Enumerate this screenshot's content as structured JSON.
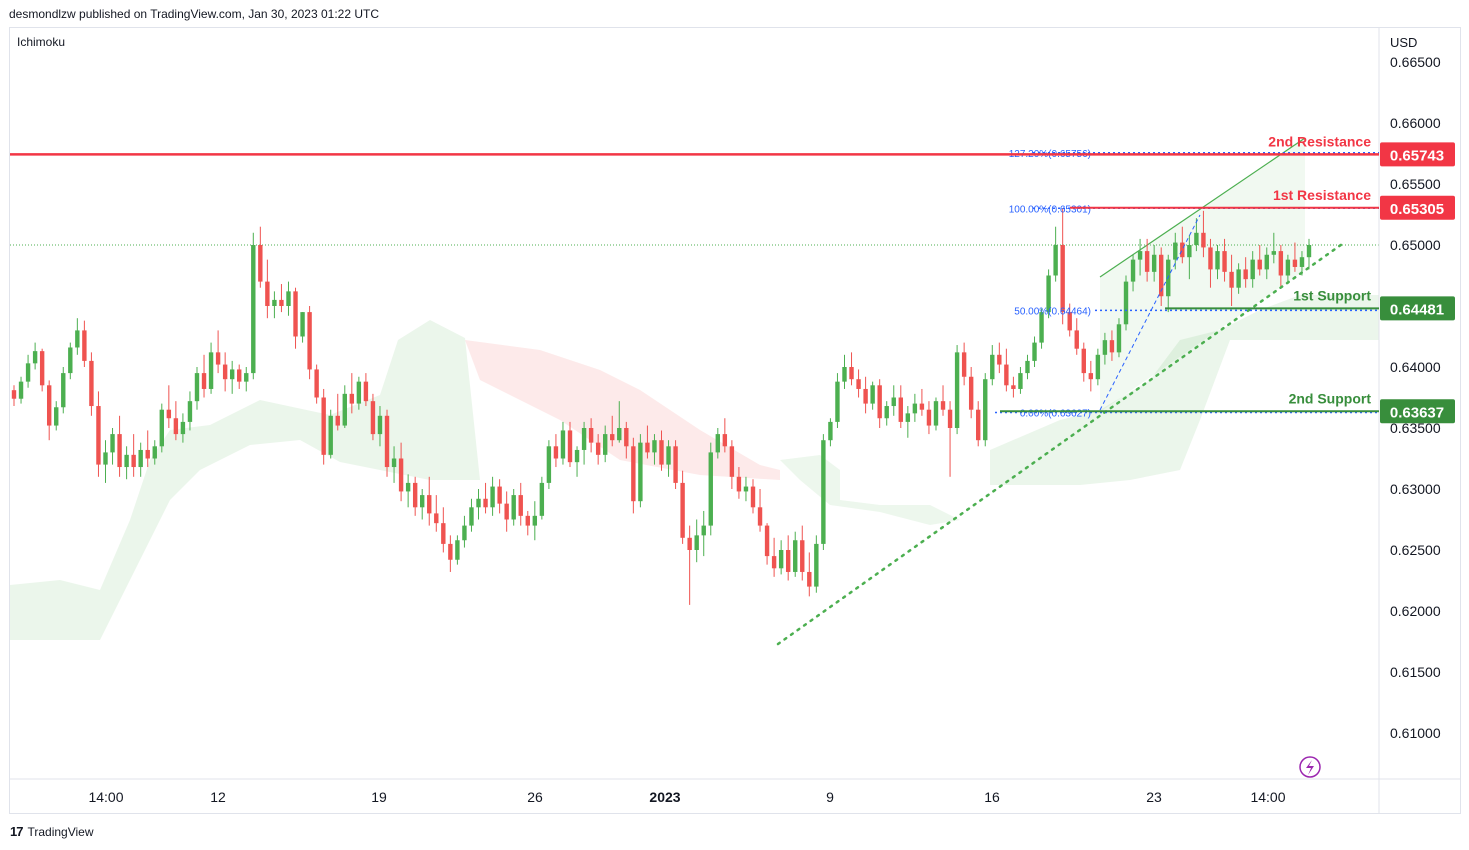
{
  "header": {
    "published_by": "desmondlzw published on TradingView.com, Jan 30, 2023 01:22 UTC"
  },
  "indicator": "Ichimoku",
  "currency": "USD",
  "footer": {
    "brand": "TradingView",
    "logo": "17"
  },
  "colors": {
    "up": "#26a69a",
    "up_candle": "#4caf50",
    "down_candle": "#ef5350",
    "resistance": "#f23645",
    "support": "#388e3c",
    "cloud_green": "#e6f4e6",
    "cloud_red": "#fde5e5",
    "fib": "#2962ff"
  },
  "chart_data": {
    "type": "candlestick",
    "title": "",
    "y_axis": {
      "ticks": [
        "0.66500",
        "0.66000",
        "0.65500",
        "0.65000",
        "0.64000",
        "0.63500",
        "0.63000",
        "0.62500",
        "0.62000",
        "0.61500",
        "0.61000"
      ],
      "range": [
        0.6055,
        0.6675
      ]
    },
    "x_axis": {
      "labels": [
        {
          "text": "14:00",
          "bold": false
        },
        {
          "text": "12",
          "bold": false
        },
        {
          "text": "19",
          "bold": false
        },
        {
          "text": "26",
          "bold": false
        },
        {
          "text": "2023",
          "bold": true
        },
        {
          "text": "9",
          "bold": false
        },
        {
          "text": "16",
          "bold": false
        },
        {
          "text": "23",
          "bold": false
        },
        {
          "text": "14:00",
          "bold": false
        }
      ]
    },
    "levels": [
      {
        "label": "2nd Resistance",
        "value": "0.65743",
        "kind": "resistance"
      },
      {
        "label": "1st Resistance",
        "value": "0.65305",
        "kind": "resistance"
      },
      {
        "label": "1st Support",
        "value": "0.64481",
        "kind": "support"
      },
      {
        "label": "2nd Support",
        "value": "0.63637",
        "kind": "support"
      }
    ],
    "fib_levels": [
      {
        "label": "127.20%(0.65756)",
        "value": 0.65756
      },
      {
        "label": "100.00%(0.65301)",
        "value": 0.65301
      },
      {
        "label": "50.00%(0.64464)",
        "value": 0.64464
      },
      {
        "label": "0.00%(0.63627)",
        "value": 0.63627
      }
    ],
    "reference_price": 0.65,
    "candles": [
      [
        0.6381,
        0.6385,
        0.6368,
        0.6374
      ],
      [
        0.6374,
        0.6392,
        0.637,
        0.6388
      ],
      [
        0.6388,
        0.641,
        0.6383,
        0.6403
      ],
      [
        0.6403,
        0.642,
        0.6398,
        0.6413
      ],
      [
        0.6413,
        0.6415,
        0.638,
        0.6385
      ],
      [
        0.6385,
        0.6389,
        0.634,
        0.6352
      ],
      [
        0.6352,
        0.6372,
        0.6348,
        0.6367
      ],
      [
        0.6367,
        0.64,
        0.6362,
        0.6395
      ],
      [
        0.6395,
        0.642,
        0.639,
        0.6416
      ],
      [
        0.6416,
        0.644,
        0.641,
        0.643
      ],
      [
        0.643,
        0.6438,
        0.64,
        0.6405
      ],
      [
        0.6405,
        0.6412,
        0.636,
        0.6368
      ],
      [
        0.6368,
        0.638,
        0.631,
        0.632
      ],
      [
        0.632,
        0.634,
        0.6305,
        0.633
      ],
      [
        0.633,
        0.635,
        0.632,
        0.6345
      ],
      [
        0.6345,
        0.636,
        0.631,
        0.6318
      ],
      [
        0.6318,
        0.6335,
        0.6308,
        0.6328
      ],
      [
        0.6328,
        0.6345,
        0.631,
        0.6318
      ],
      [
        0.6318,
        0.6338,
        0.631,
        0.6332
      ],
      [
        0.6332,
        0.6348,
        0.6318,
        0.6325
      ],
      [
        0.6325,
        0.634,
        0.632,
        0.6335
      ],
      [
        0.6335,
        0.637,
        0.633,
        0.6365
      ],
      [
        0.6365,
        0.6385,
        0.635,
        0.6358
      ],
      [
        0.6358,
        0.6372,
        0.634,
        0.6345
      ],
      [
        0.6345,
        0.6362,
        0.6338,
        0.6355
      ],
      [
        0.6355,
        0.638,
        0.6348,
        0.6372
      ],
      [
        0.6372,
        0.64,
        0.6365,
        0.6395
      ],
      [
        0.6395,
        0.641,
        0.6375,
        0.6382
      ],
      [
        0.6382,
        0.642,
        0.6378,
        0.6412
      ],
      [
        0.6412,
        0.643,
        0.6395,
        0.6402
      ],
      [
        0.6402,
        0.6412,
        0.638,
        0.639
      ],
      [
        0.639,
        0.6405,
        0.6378,
        0.6398
      ],
      [
        0.6398,
        0.6402,
        0.6382,
        0.6388
      ],
      [
        0.6388,
        0.64,
        0.638,
        0.6395
      ],
      [
        0.6395,
        0.651,
        0.639,
        0.65
      ],
      [
        0.65,
        0.6515,
        0.6465,
        0.647
      ],
      [
        0.647,
        0.6488,
        0.644,
        0.645
      ],
      [
        0.645,
        0.6462,
        0.644,
        0.6455
      ],
      [
        0.6455,
        0.6468,
        0.6445,
        0.645
      ],
      [
        0.645,
        0.647,
        0.6442,
        0.6462
      ],
      [
        0.6462,
        0.6465,
        0.6415,
        0.6425
      ],
      [
        0.6425,
        0.6445,
        0.642,
        0.6445
      ],
      [
        0.6445,
        0.645,
        0.639,
        0.6398
      ],
      [
        0.6398,
        0.6402,
        0.637,
        0.6375
      ],
      [
        0.6375,
        0.6382,
        0.632,
        0.6328
      ],
      [
        0.6328,
        0.6365,
        0.6325,
        0.636
      ],
      [
        0.636,
        0.6378,
        0.6348,
        0.6352
      ],
      [
        0.6352,
        0.6385,
        0.635,
        0.6378
      ],
      [
        0.6378,
        0.6395,
        0.6362,
        0.637
      ],
      [
        0.637,
        0.6392,
        0.6365,
        0.6388
      ],
      [
        0.6388,
        0.6395,
        0.6368,
        0.6372
      ],
      [
        0.6372,
        0.6378,
        0.634,
        0.6345
      ],
      [
        0.6345,
        0.6368,
        0.6335,
        0.636
      ],
      [
        0.636,
        0.6365,
        0.631,
        0.6318
      ],
      [
        0.6318,
        0.6335,
        0.6305,
        0.6325
      ],
      [
        0.6325,
        0.6338,
        0.629,
        0.6298
      ],
      [
        0.6298,
        0.6312,
        0.6285,
        0.6305
      ],
      [
        0.6305,
        0.631,
        0.6278,
        0.6285
      ],
      [
        0.6285,
        0.63,
        0.6275,
        0.6295
      ],
      [
        0.6295,
        0.631,
        0.627,
        0.628
      ],
      [
        0.628,
        0.6295,
        0.6265,
        0.6272
      ],
      [
        0.6272,
        0.6285,
        0.6248,
        0.6255
      ],
      [
        0.6255,
        0.6262,
        0.6232,
        0.6242
      ],
      [
        0.6242,
        0.6262,
        0.6238,
        0.6258
      ],
      [
        0.6258,
        0.6278,
        0.6252,
        0.627
      ],
      [
        0.627,
        0.6292,
        0.6265,
        0.6285
      ],
      [
        0.6285,
        0.63,
        0.6275,
        0.6292
      ],
      [
        0.6292,
        0.6305,
        0.628,
        0.6285
      ],
      [
        0.6285,
        0.631,
        0.6278,
        0.6302
      ],
      [
        0.6302,
        0.6308,
        0.628,
        0.6288
      ],
      [
        0.6288,
        0.6298,
        0.6265,
        0.6275
      ],
      [
        0.6275,
        0.63,
        0.627,
        0.6295
      ],
      [
        0.6295,
        0.6305,
        0.627,
        0.6278
      ],
      [
        0.6278,
        0.6282,
        0.6262,
        0.627
      ],
      [
        0.627,
        0.629,
        0.6258,
        0.6278
      ],
      [
        0.6278,
        0.631,
        0.6275,
        0.6305
      ],
      [
        0.6305,
        0.634,
        0.63,
        0.6335
      ],
      [
        0.6335,
        0.6345,
        0.6318,
        0.6325
      ],
      [
        0.6325,
        0.6355,
        0.632,
        0.6348
      ],
      [
        0.6348,
        0.6355,
        0.6318,
        0.6322
      ],
      [
        0.6322,
        0.6335,
        0.631,
        0.6332
      ],
      [
        0.6332,
        0.6355,
        0.632,
        0.635
      ],
      [
        0.635,
        0.6358,
        0.633,
        0.6338
      ],
      [
        0.6338,
        0.6345,
        0.632,
        0.6328
      ],
      [
        0.6328,
        0.6352,
        0.6322,
        0.6345
      ],
      [
        0.6345,
        0.636,
        0.6335,
        0.634
      ],
      [
        0.634,
        0.6372,
        0.6338,
        0.635
      ],
      [
        0.635,
        0.6355,
        0.6325,
        0.6335
      ],
      [
        0.6335,
        0.6342,
        0.628,
        0.629
      ],
      [
        0.629,
        0.6345,
        0.6285,
        0.6338
      ],
      [
        0.6338,
        0.6352,
        0.6325,
        0.633
      ],
      [
        0.633,
        0.6345,
        0.632,
        0.634
      ],
      [
        0.634,
        0.6348,
        0.6315,
        0.632
      ],
      [
        0.632,
        0.634,
        0.631,
        0.6335
      ],
      [
        0.6335,
        0.634,
        0.63,
        0.6305
      ],
      [
        0.6305,
        0.6315,
        0.6255,
        0.626
      ],
      [
        0.626,
        0.627,
        0.6205,
        0.625
      ],
      [
        0.625,
        0.6275,
        0.624,
        0.6262
      ],
      [
        0.6262,
        0.6282,
        0.6245,
        0.627
      ],
      [
        0.627,
        0.6338,
        0.6262,
        0.633
      ],
      [
        0.633,
        0.635,
        0.6325,
        0.6345
      ],
      [
        0.6345,
        0.6358,
        0.633,
        0.6335
      ],
      [
        0.6335,
        0.634,
        0.63,
        0.631
      ],
      [
        0.631,
        0.6318,
        0.6292,
        0.6298
      ],
      [
        0.6298,
        0.631,
        0.629,
        0.6302
      ],
      [
        0.6302,
        0.6308,
        0.628,
        0.6285
      ],
      [
        0.6285,
        0.63,
        0.6265,
        0.627
      ],
      [
        0.627,
        0.6272,
        0.6238,
        0.6245
      ],
      [
        0.6245,
        0.626,
        0.6228,
        0.6235
      ],
      [
        0.6235,
        0.6258,
        0.623,
        0.625
      ],
      [
        0.625,
        0.6262,
        0.6225,
        0.6232
      ],
      [
        0.6232,
        0.6265,
        0.6228,
        0.6258
      ],
      [
        0.6258,
        0.627,
        0.6225,
        0.6232
      ],
      [
        0.6232,
        0.6248,
        0.6212,
        0.622
      ],
      [
        0.622,
        0.6262,
        0.6215,
        0.6255
      ],
      [
        0.6255,
        0.6345,
        0.625,
        0.634
      ],
      [
        0.634,
        0.6358,
        0.6335,
        0.6355
      ],
      [
        0.6355,
        0.6395,
        0.635,
        0.6388
      ],
      [
        0.6388,
        0.641,
        0.6382,
        0.64
      ],
      [
        0.64,
        0.6412,
        0.6385,
        0.639
      ],
      [
        0.639,
        0.6398,
        0.6375,
        0.6382
      ],
      [
        0.6382,
        0.6392,
        0.6362,
        0.637
      ],
      [
        0.637,
        0.6388,
        0.6365,
        0.6385
      ],
      [
        0.6385,
        0.639,
        0.635,
        0.6358
      ],
      [
        0.6358,
        0.6372,
        0.6352,
        0.6368
      ],
      [
        0.6368,
        0.6385,
        0.636,
        0.6375
      ],
      [
        0.6375,
        0.6385,
        0.635,
        0.6355
      ],
      [
        0.6355,
        0.6368,
        0.6342,
        0.6362
      ],
      [
        0.6362,
        0.6378,
        0.6355,
        0.637
      ],
      [
        0.637,
        0.6382,
        0.636,
        0.6365
      ],
      [
        0.6365,
        0.6372,
        0.6345,
        0.6352
      ],
      [
        0.6352,
        0.6375,
        0.6348,
        0.6372
      ],
      [
        0.6372,
        0.6385,
        0.636,
        0.6365
      ],
      [
        0.6365,
        0.6372,
        0.631,
        0.635
      ],
      [
        0.635,
        0.6418,
        0.6345,
        0.6412
      ],
      [
        0.6412,
        0.642,
        0.6385,
        0.6392
      ],
      [
        0.6392,
        0.64,
        0.6358,
        0.6365
      ],
      [
        0.6365,
        0.6372,
        0.6335,
        0.634
      ],
      [
        0.634,
        0.6395,
        0.6335,
        0.639
      ],
      [
        0.639,
        0.6418,
        0.6385,
        0.641
      ],
      [
        0.641,
        0.642,
        0.6395,
        0.6402
      ],
      [
        0.6402,
        0.6415,
        0.638,
        0.6385
      ],
      [
        0.6385,
        0.6392,
        0.6375,
        0.6382
      ],
      [
        0.6382,
        0.64,
        0.6378,
        0.6395
      ],
      [
        0.6395,
        0.641,
        0.639,
        0.6405
      ],
      [
        0.6405,
        0.6425,
        0.64,
        0.642
      ],
      [
        0.642,
        0.6448,
        0.6415,
        0.6445
      ],
      [
        0.6445,
        0.648,
        0.644,
        0.6475
      ],
      [
        0.6475,
        0.6515,
        0.647,
        0.65
      ],
      [
        0.65,
        0.653,
        0.6435,
        0.6445
      ],
      [
        0.6445,
        0.6452,
        0.6425,
        0.643
      ],
      [
        0.643,
        0.644,
        0.641,
        0.6415
      ],
      [
        0.6415,
        0.642,
        0.6388,
        0.6395
      ],
      [
        0.6395,
        0.6405,
        0.638,
        0.639
      ],
      [
        0.639,
        0.6415,
        0.6385,
        0.641
      ],
      [
        0.641,
        0.6428,
        0.6402,
        0.6422
      ],
      [
        0.6422,
        0.643,
        0.6405,
        0.6412
      ],
      [
        0.6412,
        0.644,
        0.6408,
        0.6435
      ],
      [
        0.6435,
        0.6475,
        0.643,
        0.647
      ],
      [
        0.647,
        0.6492,
        0.6462,
        0.6488
      ],
      [
        0.6488,
        0.6505,
        0.6475,
        0.6495
      ],
      [
        0.6495,
        0.6505,
        0.647,
        0.6478
      ],
      [
        0.6478,
        0.65,
        0.647,
        0.6492
      ],
      [
        0.6492,
        0.6498,
        0.645,
        0.6458
      ],
      [
        0.6458,
        0.6492,
        0.6445,
        0.6488
      ],
      [
        0.6488,
        0.651,
        0.648,
        0.6502
      ],
      [
        0.6502,
        0.6515,
        0.6485,
        0.649
      ],
      [
        0.649,
        0.6508,
        0.6472,
        0.65
      ],
      [
        0.65,
        0.6522,
        0.6495,
        0.651
      ],
      [
        0.651,
        0.6528,
        0.649,
        0.6498
      ],
      [
        0.6498,
        0.6505,
        0.6465,
        0.648
      ],
      [
        0.648,
        0.65,
        0.6472,
        0.6495
      ],
      [
        0.6495,
        0.6505,
        0.647,
        0.6478
      ],
      [
        0.6478,
        0.6492,
        0.645,
        0.6465
      ],
      [
        0.6465,
        0.6485,
        0.646,
        0.648
      ],
      [
        0.648,
        0.649,
        0.6465,
        0.6472
      ],
      [
        0.6472,
        0.6495,
        0.6465,
        0.6488
      ],
      [
        0.6488,
        0.65,
        0.6475,
        0.648
      ],
      [
        0.648,
        0.6498,
        0.6472,
        0.6492
      ],
      [
        0.6492,
        0.651,
        0.6485,
        0.6495
      ],
      [
        0.6495,
        0.65,
        0.6465,
        0.6475
      ],
      [
        0.6475,
        0.6492,
        0.6468,
        0.6488
      ],
      [
        0.6488,
        0.6502,
        0.6478,
        0.6482
      ],
      [
        0.6482,
        0.6495,
        0.6475,
        0.649
      ],
      [
        0.649,
        0.6505,
        0.648,
        0.65
      ]
    ]
  }
}
